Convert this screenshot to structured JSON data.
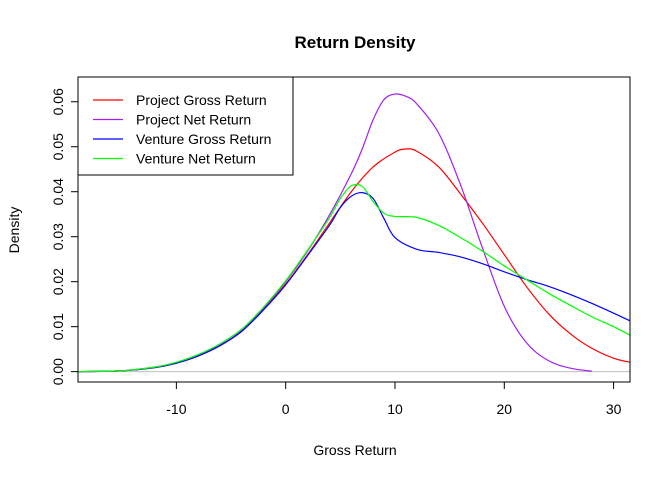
{
  "chart_data": {
    "type": "line",
    "title": "Return Density",
    "xlabel": "Gross Return",
    "ylabel": "Density",
    "xlim": [
      -19,
      31.5
    ],
    "ylim": [
      -0.0023,
      0.0655
    ],
    "xticks": [
      -10,
      0,
      10,
      20,
      30
    ],
    "xtick_labels": [
      "-10",
      "0",
      "10",
      "20",
      "30"
    ],
    "yticks": [
      0.0,
      0.01,
      0.02,
      0.03,
      0.04,
      0.05,
      0.06
    ],
    "ytick_labels": [
      "0.00",
      "0.01",
      "0.02",
      "0.03",
      "0.04",
      "0.05",
      "0.06"
    ],
    "baseline": {
      "y": 0,
      "color": "#bebebe"
    },
    "grid": false,
    "legend_position": "top-left",
    "series": [
      {
        "name": "Project Gross Return",
        "color": "#ff0000",
        "x": [
          -19,
          -15,
          -12,
          -10,
          -8,
          -6,
          -4,
          -2,
          0,
          2,
          4,
          6,
          8,
          10,
          11,
          12,
          14,
          16,
          18,
          20,
          22,
          24,
          26,
          28,
          30,
          31.5
        ],
        "y": [
          0,
          0.0002,
          0.0009,
          0.0019,
          0.0035,
          0.0058,
          0.009,
          0.014,
          0.0195,
          0.026,
          0.033,
          0.04,
          0.0455,
          0.0488,
          0.0495,
          0.049,
          0.0455,
          0.0395,
          0.033,
          0.026,
          0.019,
          0.013,
          0.0085,
          0.0052,
          0.003,
          0.0021
        ]
      },
      {
        "name": "Project Net Return",
        "color": "#a020f0",
        "x": [
          -19,
          -15,
          -12,
          -10,
          -8,
          -6,
          -4,
          -2,
          0,
          2,
          4,
          6,
          7,
          8,
          9,
          10,
          11,
          12,
          14,
          16,
          18,
          20,
          22,
          24,
          26,
          28
        ],
        "y": [
          0,
          0.0002,
          0.001,
          0.002,
          0.0036,
          0.0059,
          0.0092,
          0.0142,
          0.02,
          0.0268,
          0.0348,
          0.044,
          0.0495,
          0.056,
          0.0605,
          0.0617,
          0.0612,
          0.0595,
          0.053,
          0.0415,
          0.0275,
          0.0145,
          0.0065,
          0.0025,
          0.0008,
          0.0001
        ]
      },
      {
        "name": "Venture Gross Return",
        "color": "#0000ff",
        "x": [
          -19,
          -15,
          -12,
          -10,
          -8,
          -6,
          -4,
          -2,
          0,
          2,
          4,
          5,
          6,
          7,
          8,
          9,
          10,
          12,
          14,
          16,
          18,
          20,
          22,
          24,
          26,
          28,
          30,
          31.5
        ],
        "y": [
          0,
          0.0002,
          0.0009,
          0.0019,
          0.0035,
          0.0058,
          0.009,
          0.0138,
          0.0193,
          0.0258,
          0.0325,
          0.0365,
          0.039,
          0.0398,
          0.0385,
          0.034,
          0.0298,
          0.0272,
          0.0265,
          0.0255,
          0.024,
          0.0222,
          0.0205,
          0.019,
          0.0172,
          0.0152,
          0.013,
          0.0113
        ]
      },
      {
        "name": "Venture Net Return",
        "color": "#00ff00",
        "x": [
          -19,
          -15,
          -12,
          -10,
          -8,
          -6,
          -4,
          -2,
          0,
          2,
          4,
          5,
          6,
          7,
          8,
          9,
          10,
          12,
          14,
          16,
          18,
          20,
          22,
          24,
          26,
          28,
          30,
          31.5
        ],
        "y": [
          0,
          0.0002,
          0.001,
          0.0021,
          0.0038,
          0.0062,
          0.0095,
          0.0144,
          0.0202,
          0.027,
          0.0342,
          0.0385,
          0.0413,
          0.0412,
          0.0378,
          0.0352,
          0.0345,
          0.0343,
          0.0325,
          0.0298,
          0.0268,
          0.0235,
          0.0205,
          0.0175,
          0.0148,
          0.0122,
          0.01,
          0.0081
        ]
      }
    ]
  }
}
